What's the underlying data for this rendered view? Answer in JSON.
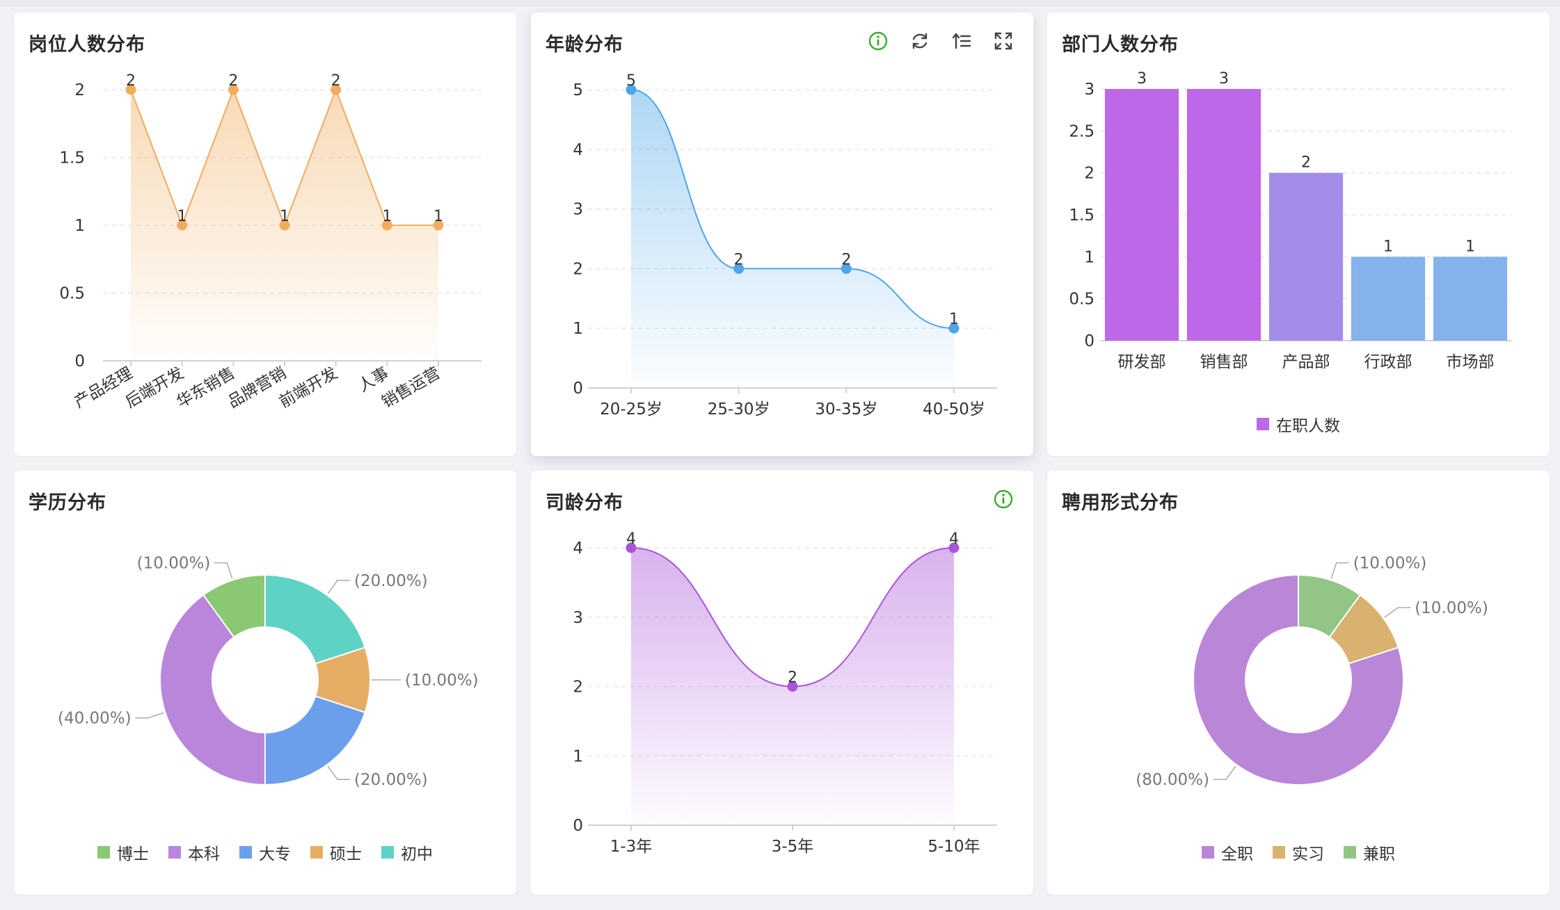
{
  "cards": {
    "post": {
      "title": "岗位人数分布"
    },
    "age": {
      "title": "年龄分布"
    },
    "dept": {
      "title": "部门人数分布"
    },
    "edu": {
      "title": "学历分布"
    },
    "tenure": {
      "title": "司龄分布"
    },
    "employ": {
      "title": "聘用形式分布"
    }
  },
  "toolbar": {
    "age": [
      "info-icon",
      "refresh-icon",
      "sort-icon",
      "fullscreen-icon"
    ],
    "tenure": [
      "info-icon"
    ]
  },
  "colors": {
    "orange_line": "#f0ad5e",
    "blue_line": "#4da6e8",
    "purple_line": "#a955d8",
    "grid": "#e6e6ec",
    "axis_text": "#333333",
    "label_gray": "#777777",
    "info_green": "#3aaa35"
  },
  "chart_data": [
    {
      "id": "post",
      "type": "area",
      "title": "岗位人数分布",
      "categories": [
        "产品经理",
        "后端开发",
        "华东销售",
        "品牌营销",
        "前端开发",
        "人事",
        "销售运营"
      ],
      "values": [
        2,
        1,
        2,
        1,
        2,
        1,
        1
      ],
      "yticks": [
        "0",
        "0.5",
        "1",
        "1.5",
        "2"
      ],
      "ylim": [
        0,
        2
      ],
      "smooth": false,
      "rotated_labels": true,
      "color": "#f0ad5e",
      "grid": true
    },
    {
      "id": "age",
      "type": "area",
      "title": "年龄分布",
      "categories": [
        "20-25岁",
        "25-30岁",
        "30-35岁",
        "40-50岁"
      ],
      "values": [
        5,
        2,
        2,
        1
      ],
      "yticks": [
        "0",
        "1",
        "2",
        "3",
        "4",
        "5"
      ],
      "ylim": [
        0,
        5
      ],
      "smooth": true,
      "color": "#4da6e8",
      "grid": true
    },
    {
      "id": "dept",
      "type": "bar",
      "title": "部门人数分布",
      "categories": [
        "研发部",
        "销售部",
        "产品部",
        "行政部",
        "市场部"
      ],
      "values": [
        3,
        3,
        2,
        1,
        1
      ],
      "bar_colors": [
        "#bd68e8",
        "#bd68e8",
        "#a38de8",
        "#85b2ec",
        "#85b2ec"
      ],
      "yticks": [
        "0",
        "0.5",
        "1",
        "1.5",
        "2",
        "2.5",
        "3"
      ],
      "ylim": [
        0,
        3
      ],
      "legend": [
        {
          "name": "在职人数",
          "color": "#bd68e8"
        }
      ],
      "legend_position": "bottom",
      "grid": true
    },
    {
      "id": "edu",
      "type": "pie",
      "title": "学历分布",
      "slices": [
        {
          "name": "初中",
          "value": 20,
          "label": "(20.00%)",
          "color": "#5dd2c5"
        },
        {
          "name": "硕士",
          "value": 10,
          "label": "(10.00%)",
          "color": "#e6ad65"
        },
        {
          "name": "大专",
          "value": 20,
          "label": "(20.00%)",
          "color": "#6b9fec"
        },
        {
          "name": "本科",
          "value": 40,
          "label": "(40.00%)",
          "color": "#b986dc"
        },
        {
          "name": "博士",
          "value": 10,
          "label": "(10.00%)",
          "color": "#8bc874"
        }
      ],
      "legend": [
        {
          "name": "博士",
          "color": "#8bc874"
        },
        {
          "name": "本科",
          "color": "#b986dc"
        },
        {
          "name": "大专",
          "color": "#6b9fec"
        },
        {
          "name": "硕士",
          "color": "#e6ad65"
        },
        {
          "name": "初中",
          "color": "#5dd2c5"
        }
      ],
      "legend_position": "bottom",
      "donut": true
    },
    {
      "id": "tenure",
      "type": "area",
      "title": "司龄分布",
      "categories": [
        "1-3年",
        "3-5年",
        "5-10年"
      ],
      "values": [
        4,
        2,
        4
      ],
      "yticks": [
        "0",
        "1",
        "2",
        "3",
        "4"
      ],
      "ylim": [
        0,
        4
      ],
      "smooth": true,
      "color": "#a955d8",
      "grid": true
    },
    {
      "id": "employ",
      "type": "pie",
      "title": "聘用形式分布",
      "slices": [
        {
          "name": "兼职",
          "value": 10,
          "label": "(10.00%)",
          "color": "#93c586"
        },
        {
          "name": "实习",
          "value": 10,
          "label": "(10.00%)",
          "color": "#d8b26e"
        },
        {
          "name": "全职",
          "value": 80,
          "label": "(80.00%)",
          "color": "#b986d8"
        }
      ],
      "legend": [
        {
          "name": "全职",
          "color": "#b986d8"
        },
        {
          "name": "实习",
          "color": "#d8b26e"
        },
        {
          "name": "兼职",
          "color": "#93c586"
        }
      ],
      "legend_position": "bottom",
      "donut": true
    }
  ]
}
